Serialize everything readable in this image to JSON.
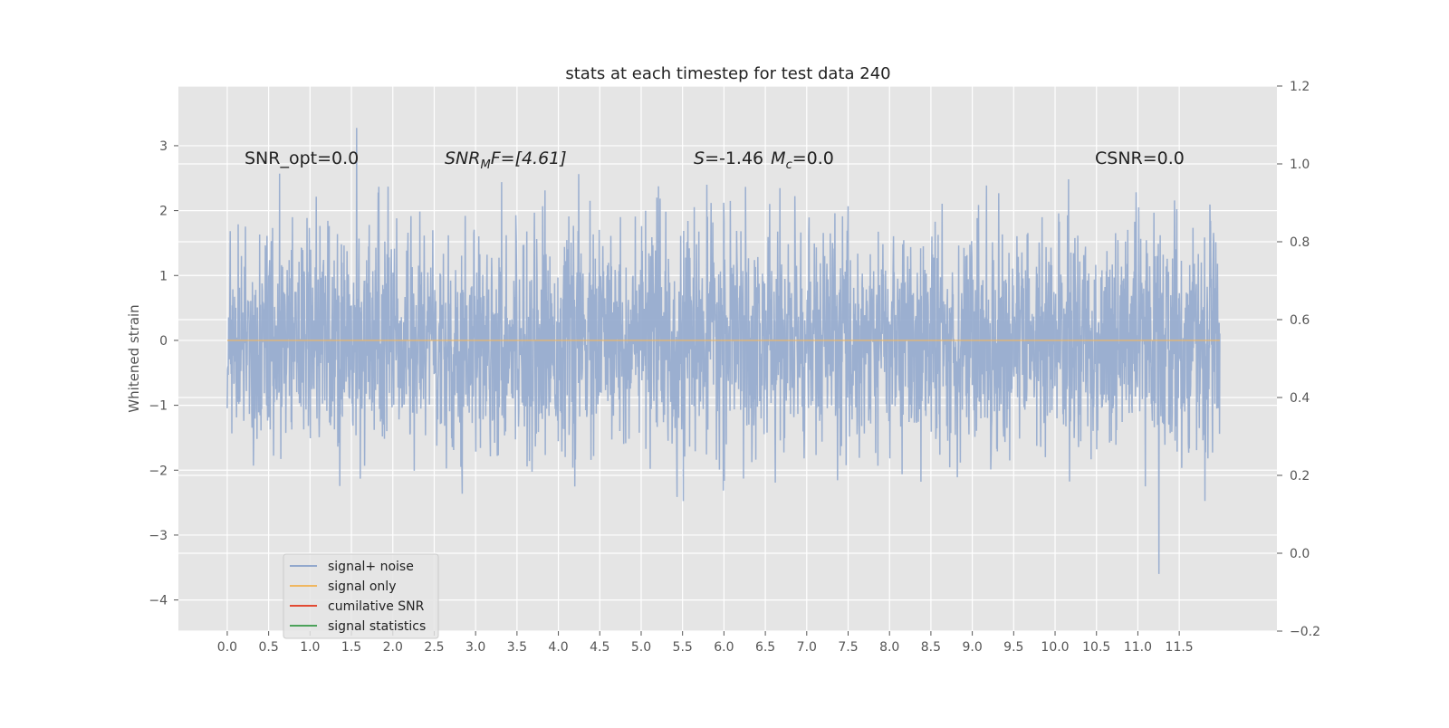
{
  "chart_data": {
    "type": "line",
    "title": "stats at each timestep for test data 240",
    "ylabel": "Whitened strain",
    "xlabel": "",
    "xlim": [
      -0.59,
      12.68
    ],
    "ylim": [
      -4.48,
      3.92
    ],
    "y2lim": [
      -0.2,
      1.2
    ],
    "grid": true,
    "xticks": [
      "0.0",
      "0.5",
      "1.0",
      "1.5",
      "2.0",
      "2.5",
      "3.0",
      "3.5",
      "4.0",
      "4.5",
      "5.0",
      "5.5",
      "6.0",
      "6.5",
      "7.0",
      "7.5",
      "8.0",
      "8.5",
      "9.0",
      "9.5",
      "10.0",
      "10.5",
      "11.0",
      "11.5"
    ],
    "yticks": [
      3,
      2,
      1,
      0,
      -1,
      -2,
      -3,
      -4
    ],
    "ytick_labels": [
      "3",
      "2",
      "1",
      "0",
      "−1",
      "−2",
      "−3",
      "−4"
    ],
    "y2ticks": [
      1.2,
      1.0,
      0.8,
      0.6,
      0.4,
      0.2,
      0.0,
      -0.2
    ],
    "y2tick_labels": [
      "1.2",
      "1.0",
      "0.8",
      "0.6",
      "0.4",
      "0.2",
      "0.0",
      "−0.2"
    ],
    "series": [
      {
        "name": "signal+ noise",
        "color": "#92a8cd",
        "x_range": [
          0,
          11.99
        ],
        "approx_std": 0.85,
        "approx_min": -3.6,
        "approx_max": 3.55
      },
      {
        "name": "signal only",
        "color": "#f0b760",
        "constant_value": 0,
        "x_range": [
          0,
          11.99
        ]
      },
      {
        "name": "cumilative SNR",
        "color": "#e24a33"
      },
      {
        "name": "signal statistics",
        "color": "#4ca25a"
      }
    ],
    "legend_placement": "lower-left",
    "annotations": [
      {
        "text": "SNR_opt=0.0"
      },
      {
        "text_main": "SNR",
        "text_sub": "M",
        "text_rest": "F=[4.61]"
      },
      {
        "text_s": "S",
        "text_s_rest": "=-1.46",
        "text_m": "M",
        "text_m_sub": "c",
        "text_m_rest": "=0.0"
      },
      {
        "text": "CSNR=0.0"
      }
    ]
  }
}
